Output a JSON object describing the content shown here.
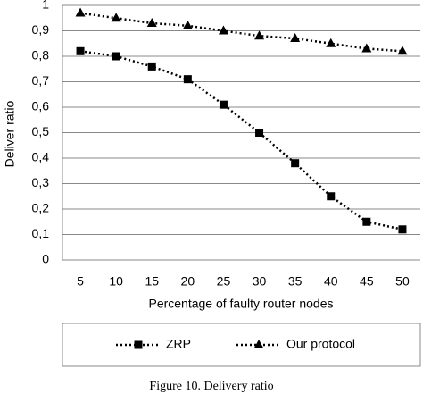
{
  "chart_data": {
    "type": "line",
    "y_label": "Deliver ratio",
    "x_label": "Percentage of faulty router nodes",
    "caption": "Figure 10. Delivery ratio",
    "categories": [
      5,
      10,
      15,
      20,
      25,
      30,
      35,
      40,
      45,
      50
    ],
    "series": [
      {
        "name": "ZRP",
        "color": "#000000",
        "marker": "square",
        "values": [
          0.82,
          0.8,
          0.76,
          0.71,
          0.61,
          0.5,
          0.38,
          0.25,
          0.15,
          0.12
        ]
      },
      {
        "name": "Our protocol",
        "color": "#000000",
        "marker": "triangle",
        "values": [
          0.97,
          0.95,
          0.93,
          0.92,
          0.9,
          0.88,
          0.87,
          0.85,
          0.83,
          0.82
        ]
      }
    ],
    "ylim": [
      0,
      1
    ],
    "yticks": [
      0,
      {
        "value": 0.1,
        "label": "0,1"
      },
      {
        "value": 0.2,
        "label": "0,2"
      },
      {
        "value": 0.3,
        "label": "0,3"
      },
      {
        "value": 0.4,
        "label": "0,4"
      },
      {
        "value": 0.5,
        "label": "0,5"
      },
      {
        "value": 0.6,
        "label": "0,6"
      },
      {
        "value": 0.7,
        "label": "0,7"
      },
      {
        "value": 0.8,
        "label": "0,8"
      },
      {
        "value": 0.9,
        "label": "0,9"
      },
      1
    ],
    "grid": true
  }
}
